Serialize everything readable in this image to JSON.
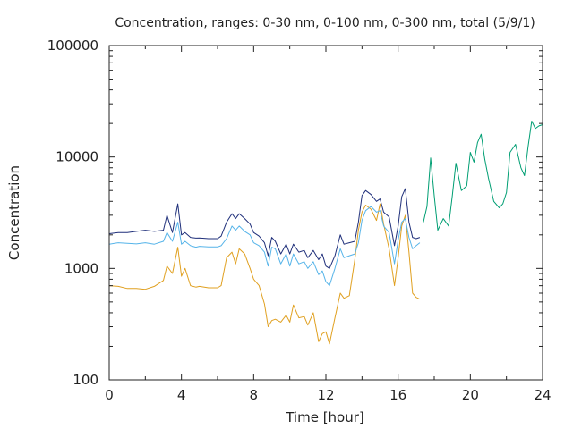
{
  "chart_data": {
    "type": "line",
    "title": "Concentration, ranges: 0-30 nm, 0-100 nm, 0-300 nm, total (5/9/1)",
    "xlabel": "Time [hour]",
    "ylabel": "Concentration",
    "xlim": [
      0,
      24
    ],
    "ylim": [
      100,
      100000
    ],
    "yscale": "log",
    "grid": false,
    "legend": "none",
    "x_ticks": [
      "0",
      "4",
      "8",
      "12",
      "16",
      "20",
      "24"
    ],
    "y_ticks": [
      "100",
      "1000",
      "10000",
      "100000"
    ],
    "x_tick_values": [
      0,
      4,
      8,
      12,
      16,
      20,
      24
    ],
    "y_tick_values": [
      100,
      1000,
      10000,
      100000
    ],
    "series": [
      {
        "color": "#e0a020",
        "x": [
          0,
          0.5,
          1,
          1.5,
          2,
          2.5,
          3,
          3.2,
          3.5,
          3.8,
          4,
          4.2,
          4.5,
          4.8,
          5,
          5.5,
          6,
          6.2,
          6.5,
          6.8,
          7,
          7.2,
          7.5,
          7.8,
          8,
          8.3,
          8.6,
          8.8,
          9,
          9.2,
          9.5,
          9.8,
          10,
          10.2,
          10.5,
          10.8,
          11,
          11.3,
          11.6,
          11.8,
          12,
          12.2,
          12.5,
          12.8,
          13,
          13.3,
          13.6,
          13.8,
          14,
          14.2,
          14.5,
          14.8,
          15,
          15.2,
          15.5,
          15.8,
          16,
          16.2,
          16.4,
          16.6,
          16.8,
          17,
          17.2
        ],
        "values": [
          700,
          690,
          660,
          660,
          650,
          690,
          780,
          1050,
          900,
          1550,
          850,
          1000,
          700,
          680,
          690,
          670,
          670,
          700,
          1250,
          1400,
          1100,
          1500,
          1350,
          1000,
          800,
          700,
          480,
          300,
          340,
          350,
          330,
          380,
          330,
          470,
          360,
          370,
          310,
          400,
          220,
          260,
          270,
          210,
          360,
          600,
          540,
          570,
          1200,
          2200,
          3200,
          3700,
          3400,
          2700,
          3800,
          2500,
          1500,
          700,
          1250,
          2400,
          3000,
          1400,
          600,
          550,
          530
        ]
      },
      {
        "color": "#56b4e9",
        "x": [
          0,
          0.5,
          1,
          1.5,
          2,
          2.5,
          3,
          3.2,
          3.5,
          3.8,
          4,
          4.2,
          4.5,
          4.8,
          5,
          5.5,
          6,
          6.2,
          6.5,
          6.8,
          7,
          7.2,
          7.5,
          7.8,
          8,
          8.3,
          8.6,
          8.8,
          9,
          9.2,
          9.5,
          9.8,
          10,
          10.2,
          10.5,
          10.8,
          11,
          11.3,
          11.6,
          11.8,
          12,
          12.2,
          12.5,
          12.8,
          13,
          13.3,
          13.6,
          13.8,
          14,
          14.2,
          14.5,
          14.8,
          15,
          15.2,
          15.5,
          15.8,
          16,
          16.2,
          16.4,
          16.6,
          16.8,
          17,
          17.2
        ],
        "values": [
          1650,
          1700,
          1680,
          1660,
          1700,
          1650,
          1750,
          2100,
          1750,
          2600,
          1650,
          1750,
          1600,
          1550,
          1580,
          1560,
          1560,
          1600,
          1850,
          2400,
          2200,
          2400,
          2150,
          2000,
          1700,
          1600,
          1400,
          1050,
          1550,
          1500,
          1100,
          1350,
          1050,
          1350,
          1100,
          1150,
          1000,
          1150,
          880,
          950,
          760,
          700,
          1000,
          1500,
          1250,
          1300,
          1350,
          1700,
          2700,
          3300,
          3600,
          3200,
          3300,
          2400,
          2100,
          1100,
          1800,
          2600,
          2800,
          1900,
          1500,
          1600,
          1700
        ]
      },
      {
        "color": "#009e73",
        "x": [
          17.4,
          17.6,
          17.8,
          18,
          18.2,
          18.5,
          18.8,
          19,
          19.2,
          19.5,
          19.8,
          20,
          20.2,
          20.4,
          20.6,
          20.8,
          21,
          21.3,
          21.6,
          21.8,
          22,
          22.2,
          22.5,
          22.8,
          23,
          23.2,
          23.4,
          23.6,
          23.8,
          24
        ],
        "values": [
          2600,
          3600,
          9800,
          4500,
          2200,
          2800,
          2400,
          4500,
          8800,
          5000,
          5500,
          11000,
          9000,
          13500,
          16000,
          9500,
          6500,
          4000,
          3500,
          3800,
          4800,
          11000,
          13000,
          8000,
          6800,
          12500,
          21000,
          18000,
          19000,
          19500
        ]
      },
      {
        "color": "#1f2f7a",
        "x": [
          0,
          0.5,
          1,
          1.5,
          2,
          2.5,
          3,
          3.2,
          3.5,
          3.8,
          4,
          4.2,
          4.5,
          4.8,
          5,
          5.5,
          6,
          6.2,
          6.5,
          6.8,
          7,
          7.2,
          7.5,
          7.8,
          8,
          8.3,
          8.6,
          8.8,
          9,
          9.2,
          9.5,
          9.8,
          10,
          10.2,
          10.5,
          10.8,
          11,
          11.3,
          11.6,
          11.8,
          12,
          12.2,
          12.5,
          12.8,
          13,
          13.3,
          13.6,
          13.8,
          14,
          14.2,
          14.5,
          14.8,
          15,
          15.2,
          15.5,
          15.8,
          16,
          16.2,
          16.4,
          16.6,
          16.8,
          17,
          17.2
        ],
        "values": [
          2050,
          2100,
          2100,
          2150,
          2200,
          2150,
          2200,
          3000,
          2100,
          3800,
          2000,
          2100,
          1900,
          1870,
          1880,
          1850,
          1850,
          1950,
          2600,
          3100,
          2800,
          3100,
          2800,
          2500,
          2100,
          1950,
          1700,
          1300,
          1900,
          1750,
          1350,
          1650,
          1350,
          1650,
          1400,
          1450,
          1250,
          1450,
          1200,
          1350,
          1050,
          1000,
          1300,
          2000,
          1650,
          1700,
          1750,
          2600,
          4500,
          5000,
          4600,
          4000,
          4200,
          3200,
          2900,
          1600,
          2400,
          4400,
          5200,
          2600,
          1900,
          1850,
          1900
        ]
      }
    ]
  }
}
